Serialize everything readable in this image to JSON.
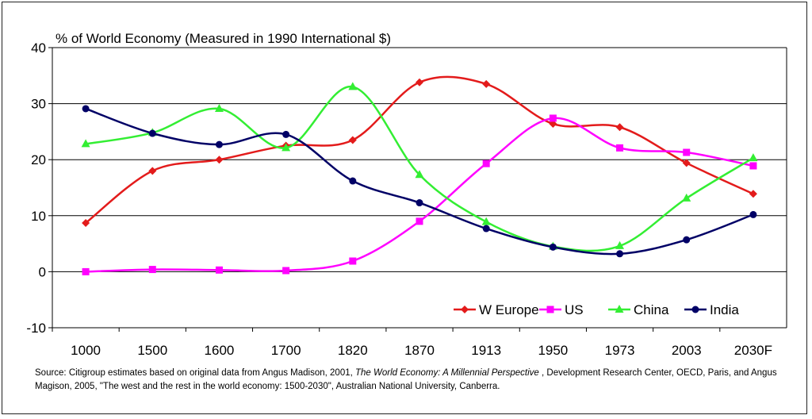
{
  "chart_data": {
    "type": "line",
    "title": "% of World Economy (Measured in 1990 International $)",
    "xlabel": "",
    "ylabel": "",
    "categories": [
      "1000",
      "1500",
      "1600",
      "1700",
      "1820",
      "1870",
      "1913",
      "1950",
      "1973",
      "2003",
      "2030F"
    ],
    "ylim": [
      -10,
      40
    ],
    "yticks": [
      -10,
      0,
      10,
      20,
      30,
      40
    ],
    "grid": true,
    "legend": "bottom-right",
    "series": [
      {
        "name": "W Europe",
        "color": "#e31b1b",
        "marker": "diamond",
        "values": [
          8.7,
          18.0,
          20.0,
          22.5,
          23.5,
          33.8,
          33.5,
          26.4,
          25.8,
          19.4,
          13.9
        ]
      },
      {
        "name": "US",
        "color": "#ff00ff",
        "marker": "square",
        "values": [
          0.0,
          0.4,
          0.3,
          0.2,
          1.9,
          9.0,
          19.3,
          27.4,
          22.1,
          21.3,
          18.9
        ]
      },
      {
        "name": "China",
        "color": "#33ee33",
        "marker": "triangle",
        "values": [
          22.8,
          24.8,
          29.1,
          22.1,
          33.0,
          17.3,
          8.9,
          4.5,
          4.6,
          13.1,
          20.3
        ]
      },
      {
        "name": "India",
        "color": "#000066",
        "marker": "circle",
        "values": [
          29.1,
          24.7,
          22.7,
          24.5,
          16.2,
          12.3,
          7.7,
          4.4,
          3.2,
          5.7,
          10.2
        ]
      }
    ]
  },
  "source": {
    "part1": "Source: Citigroup estimates based on original data from Angus Madison, 2001, ",
    "italic": "The World Economy: A Millennial Perspective",
    "part2": " , Development Research Center, OECD, Paris, and Angus Magison, 2005, \"The west and the rest in the world economy: 1500-2030\", Australian National University, Canberra."
  }
}
